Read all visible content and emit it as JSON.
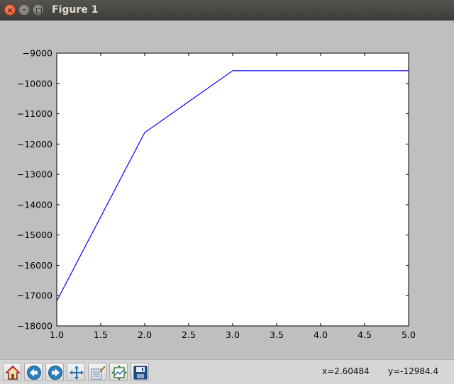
{
  "window": {
    "title": "Figure 1",
    "close_glyph": "×",
    "minimize_glyph": "–"
  },
  "toolbar": {
    "buttons": [
      {
        "name": "home-icon",
        "tooltip": "Reset original view"
      },
      {
        "name": "back-arrow-icon",
        "tooltip": "Back to previous view"
      },
      {
        "name": "forward-arrow-icon",
        "tooltip": "Forward to next view"
      },
      {
        "name": "pan-icon",
        "tooltip": "Pan axes"
      },
      {
        "name": "edit-axes-icon",
        "tooltip": "Edit axis"
      },
      {
        "name": "configure-subplots-icon",
        "tooltip": "Configure subplots"
      },
      {
        "name": "save-icon",
        "tooltip": "Save the figure"
      }
    ],
    "coord_x": "x=2.60484",
    "coord_y": "y=-12984.4"
  },
  "chart_data": {
    "type": "line",
    "title": "",
    "xlabel": "",
    "ylabel": "",
    "xlim": [
      1.0,
      5.0
    ],
    "ylim": [
      -18000,
      -9000
    ],
    "x_ticks": [
      "1.0",
      "1.5",
      "2.0",
      "2.5",
      "3.0",
      "3.5",
      "4.0",
      "4.5",
      "5.0"
    ],
    "y_ticks": [
      "−9000",
      "−10000",
      "−11000",
      "−12000",
      "−13000",
      "−14000",
      "−15000",
      "−16000",
      "−17000",
      "−18000"
    ],
    "grid": false,
    "series": [
      {
        "color": "#0000ff",
        "x": [
          1,
          2,
          3,
          4,
          5
        ],
        "y": [
          -17180,
          -11620,
          -9580,
          -9580,
          -9580
        ]
      }
    ]
  }
}
